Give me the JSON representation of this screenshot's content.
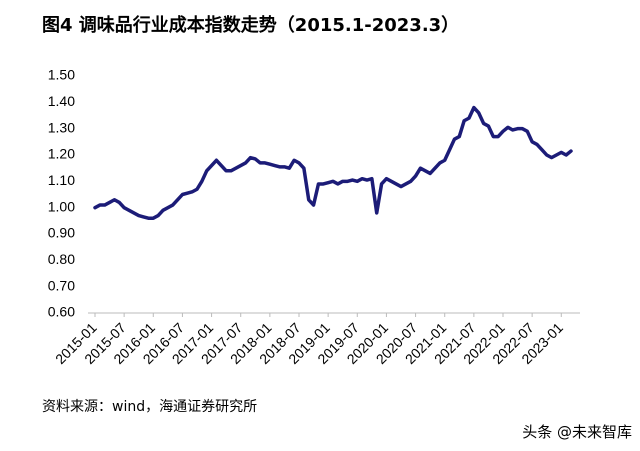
{
  "chart_data": {
    "type": "line",
    "title": "图4  调味品行业成本指数走势（2015.1-2023.3）",
    "source": "资料来源：wind，海通证券研究所",
    "watermark": "头条 @未来智库",
    "categories": [
      "2015-01",
      null,
      null,
      null,
      null,
      null,
      "2015-07",
      null,
      null,
      null,
      null,
      null,
      "2016-01",
      null,
      null,
      null,
      null,
      null,
      "2016-07",
      null,
      null,
      null,
      null,
      null,
      "2017-01",
      null,
      null,
      null,
      null,
      null,
      "2017-07",
      null,
      null,
      null,
      null,
      null,
      "2018-01",
      null,
      null,
      null,
      null,
      null,
      "2018-07",
      null,
      null,
      null,
      null,
      null,
      "2019-01",
      null,
      null,
      null,
      null,
      null,
      "2019-07",
      null,
      null,
      null,
      null,
      null,
      "2020-01",
      null,
      null,
      null,
      null,
      null,
      "2020-07",
      null,
      null,
      null,
      null,
      null,
      "2021-01",
      null,
      null,
      null,
      null,
      null,
      "2021-07",
      null,
      null,
      null,
      null,
      null,
      "2022-01",
      null,
      null,
      null,
      null,
      null,
      "2022-07",
      null,
      null,
      null,
      null,
      null,
      "2023-01",
      null,
      null
    ],
    "values": [
      1.0,
      1.01,
      1.01,
      1.02,
      1.03,
      1.02,
      1.0,
      0.99,
      0.98,
      0.97,
      0.965,
      0.96,
      0.96,
      0.97,
      0.99,
      1.0,
      1.01,
      1.03,
      1.05,
      1.055,
      1.06,
      1.07,
      1.1,
      1.14,
      1.16,
      1.18,
      1.16,
      1.14,
      1.14,
      1.15,
      1.16,
      1.17,
      1.19,
      1.185,
      1.17,
      1.17,
      1.165,
      1.16,
      1.155,
      1.155,
      1.15,
      1.18,
      1.17,
      1.15,
      1.03,
      1.01,
      1.09,
      1.09,
      1.095,
      1.1,
      1.09,
      1.1,
      1.1,
      1.105,
      1.1,
      1.11,
      1.105,
      1.11,
      0.98,
      1.09,
      1.11,
      1.1,
      1.09,
      1.08,
      1.09,
      1.1,
      1.12,
      1.15,
      1.14,
      1.13,
      1.15,
      1.17,
      1.18,
      1.22,
      1.26,
      1.27,
      1.33,
      1.34,
      1.38,
      1.36,
      1.32,
      1.31,
      1.27,
      1.27,
      1.29,
      1.305,
      1.295,
      1.3,
      1.3,
      1.29,
      1.25,
      1.24,
      1.22,
      1.2,
      1.19,
      1.2,
      1.21,
      1.2,
      1.215
    ],
    "color": "#1c1c78",
    "ylim": [
      0.6,
      1.5
    ],
    "yticks": [
      {
        "value": 0.6,
        "label": "0.60"
      },
      {
        "value": 0.7,
        "label": "0.70"
      },
      {
        "value": 0.8,
        "label": "0.80"
      },
      {
        "value": 0.9,
        "label": "0.90"
      },
      {
        "value": 1.0,
        "label": "1.00"
      },
      {
        "value": 1.1,
        "label": "1.10"
      },
      {
        "value": 1.2,
        "label": "1.20"
      },
      {
        "value": 1.3,
        "label": "1.30"
      },
      {
        "value": 1.4,
        "label": "1.40"
      },
      {
        "value": 1.5,
        "label": "1.50"
      }
    ],
    "grid": false
  }
}
